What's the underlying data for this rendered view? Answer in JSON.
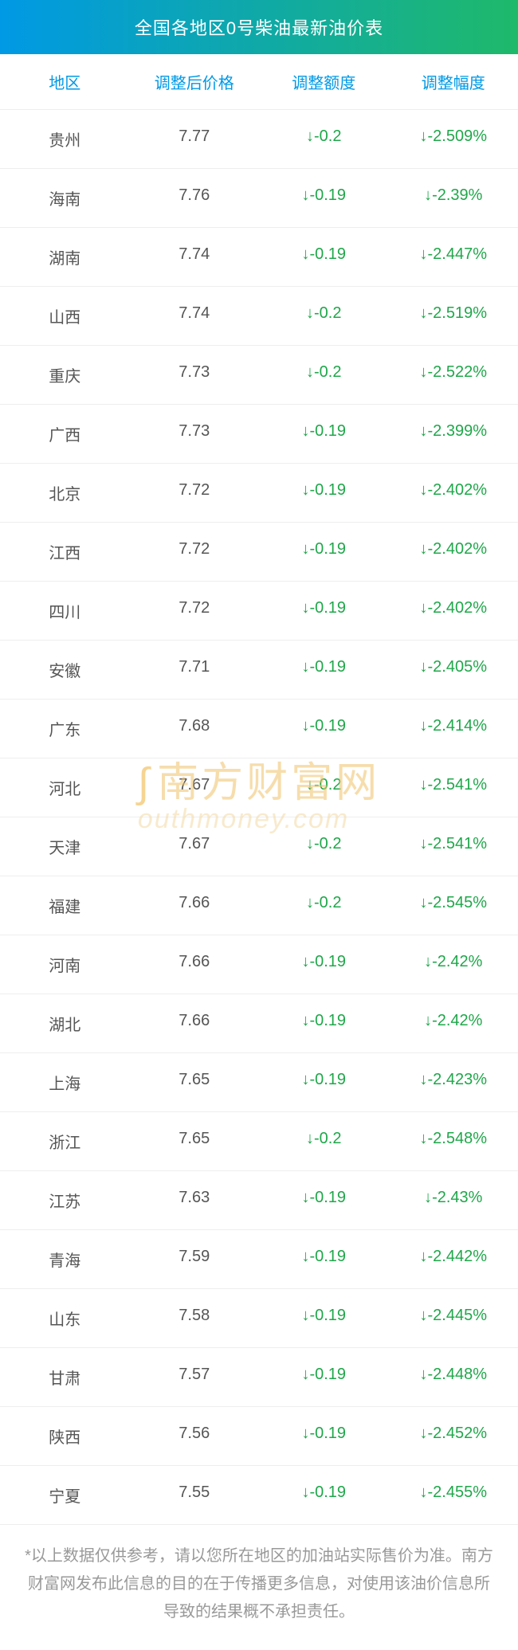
{
  "title": "全国各地区0号柴油最新油价表",
  "columns": [
    "地区",
    "调整后价格",
    "调整额度",
    "调整幅度"
  ],
  "rows": [
    {
      "region": "贵州",
      "price": "7.77",
      "delta": "↓-0.2",
      "pct": "↓-2.509%"
    },
    {
      "region": "海南",
      "price": "7.76",
      "delta": "↓-0.19",
      "pct": "↓-2.39%"
    },
    {
      "region": "湖南",
      "price": "7.74",
      "delta": "↓-0.19",
      "pct": "↓-2.447%"
    },
    {
      "region": "山西",
      "price": "7.74",
      "delta": "↓-0.2",
      "pct": "↓-2.519%"
    },
    {
      "region": "重庆",
      "price": "7.73",
      "delta": "↓-0.2",
      "pct": "↓-2.522%"
    },
    {
      "region": "广西",
      "price": "7.73",
      "delta": "↓-0.19",
      "pct": "↓-2.399%"
    },
    {
      "region": "北京",
      "price": "7.72",
      "delta": "↓-0.19",
      "pct": "↓-2.402%"
    },
    {
      "region": "江西",
      "price": "7.72",
      "delta": "↓-0.19",
      "pct": "↓-2.402%"
    },
    {
      "region": "四川",
      "price": "7.72",
      "delta": "↓-0.19",
      "pct": "↓-2.402%"
    },
    {
      "region": "安徽",
      "price": "7.71",
      "delta": "↓-0.19",
      "pct": "↓-2.405%"
    },
    {
      "region": "广东",
      "price": "7.68",
      "delta": "↓-0.19",
      "pct": "↓-2.414%"
    },
    {
      "region": "河北",
      "price": "7.67",
      "delta": "↓-0.2",
      "pct": "↓-2.541%"
    },
    {
      "region": "天津",
      "price": "7.67",
      "delta": "↓-0.2",
      "pct": "↓-2.541%"
    },
    {
      "region": "福建",
      "price": "7.66",
      "delta": "↓-0.2",
      "pct": "↓-2.545%"
    },
    {
      "region": "河南",
      "price": "7.66",
      "delta": "↓-0.19",
      "pct": "↓-2.42%"
    },
    {
      "region": "湖北",
      "price": "7.66",
      "delta": "↓-0.19",
      "pct": "↓-2.42%"
    },
    {
      "region": "上海",
      "price": "7.65",
      "delta": "↓-0.19",
      "pct": "↓-2.423%"
    },
    {
      "region": "浙江",
      "price": "7.65",
      "delta": "↓-0.2",
      "pct": "↓-2.548%"
    },
    {
      "region": "江苏",
      "price": "7.63",
      "delta": "↓-0.19",
      "pct": "↓-2.43%"
    },
    {
      "region": "青海",
      "price": "7.59",
      "delta": "↓-0.19",
      "pct": "↓-2.442%"
    },
    {
      "region": "山东",
      "price": "7.58",
      "delta": "↓-0.19",
      "pct": "↓-2.445%"
    },
    {
      "region": "甘肃",
      "price": "7.57",
      "delta": "↓-0.19",
      "pct": "↓-2.448%"
    },
    {
      "region": "陕西",
      "price": "7.56",
      "delta": "↓-0.19",
      "pct": "↓-2.452%"
    },
    {
      "region": "宁夏",
      "price": "7.55",
      "delta": "↓-0.19",
      "pct": "↓-2.455%"
    }
  ],
  "footnote": "*以上数据仅供参考，请以您所在地区的加油站实际售价为准。南方财富网发布此信息的目的在于传播更多信息，对使用该油价信息所导致的结果概不承担责任。",
  "watermark": {
    "line1": "南方财富网",
    "line2": "outhmoney.com"
  },
  "colors": {
    "gradient_start": "#0099e5",
    "gradient_end": "#1fb96a",
    "header_text": "#0099e5",
    "body_text": "#555555",
    "down_text": "#1fa74a",
    "border": "#eeeeee",
    "footnote": "#999999",
    "watermark": "#f0c26a"
  },
  "font_sizes": {
    "title": 22,
    "header": 20,
    "cell": 20,
    "footnote": 20
  }
}
